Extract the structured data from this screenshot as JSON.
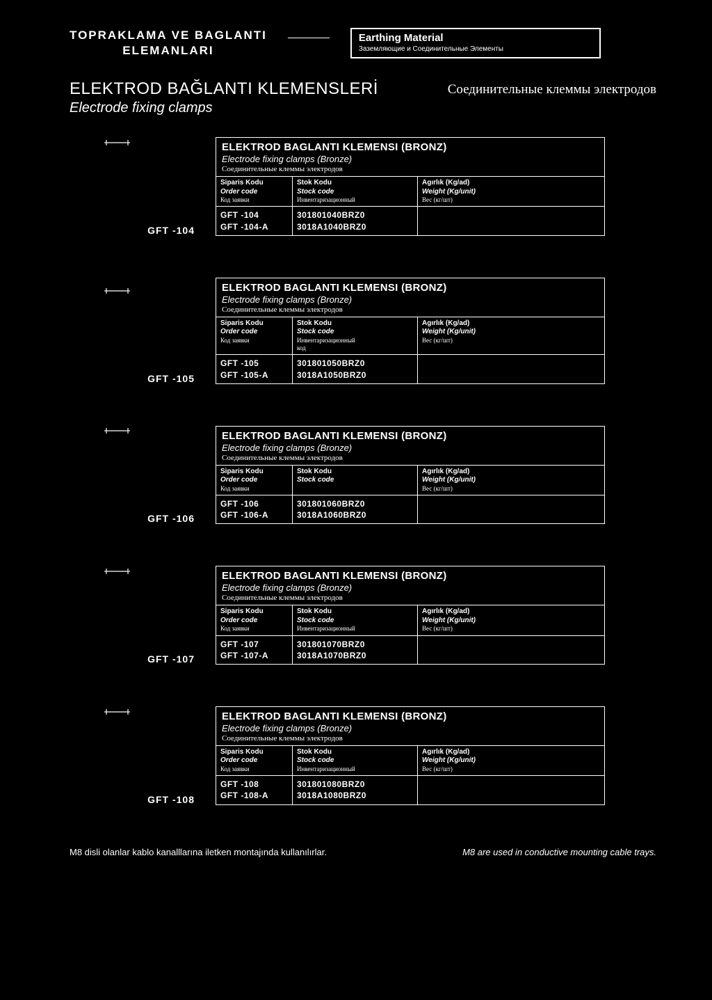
{
  "header": {
    "left_line1": "TOPRAKLAMA VE BAGLANTI",
    "left_line2": "ELEMANLARI",
    "right_title": "Earthing Material",
    "right_sub": "Заземляющие и Соединительные Элементы"
  },
  "title": {
    "turkish": "ELEKTROD BAĞLANTI KLEMENSLERİ",
    "english": "Electrode fixing clamps",
    "russian": "Соединительные клеммы электродов"
  },
  "table_header": {
    "title_tr": "ELEKTROD BAGLANTI KLEMENSI (BRONZ)",
    "title_en": "Electrode fixing clamps (Bronze)",
    "title_ru": "Соединительные клеммы электродов",
    "col_order_tr": "Siparis Kodu",
    "col_order_en": "Order code",
    "col_order_ru": "Код заявки",
    "col_stock_tr": "Stok Kodu",
    "col_stock_en": "Stock code",
    "col_stock_ru": "Инвентаризационный",
    "col_stock_ru2": "код",
    "col_weight_tr": "Agırlık (Kg/ad)",
    "col_weight_en": "Weight (Kg/unit)",
    "col_weight_ru": "Вес (кг/шт)"
  },
  "products": [
    {
      "label": "GFT -104",
      "order": "GFT -104\nGFT -104-A",
      "stock": "301801040BRZ0\n3018A1040BRZ0",
      "show_ru2": false
    },
    {
      "label": "GFT -105",
      "order": "GFT -105\nGFT -105-A",
      "stock": "301801050BRZ0\n3018A1050BRZ0",
      "show_ru2": true
    },
    {
      "label": "GFT -106",
      "order": "GFT -106\nGFT -106-A",
      "stock": "301801060BRZ0\n3018A1060BRZ0",
      "show_ru2": false,
      "hide_stock_ru": true
    },
    {
      "label": "GFT -107",
      "order": "GFT -107\nGFT -107-A",
      "stock": "301801070BRZ0\n3018A1070BRZ0",
      "show_ru2": false
    },
    {
      "label": "GFT -108",
      "order": "GFT -108\nGFT -108-A",
      "stock": "301801080BRZ0\n3018A1080BRZ0",
      "show_ru2": false
    }
  ],
  "footer": {
    "left": "M8 disli olanlar kablo kanalllarına iletken montajında kullanılırlar.",
    "right": "M8 are used in conductive mounting cable trays."
  }
}
